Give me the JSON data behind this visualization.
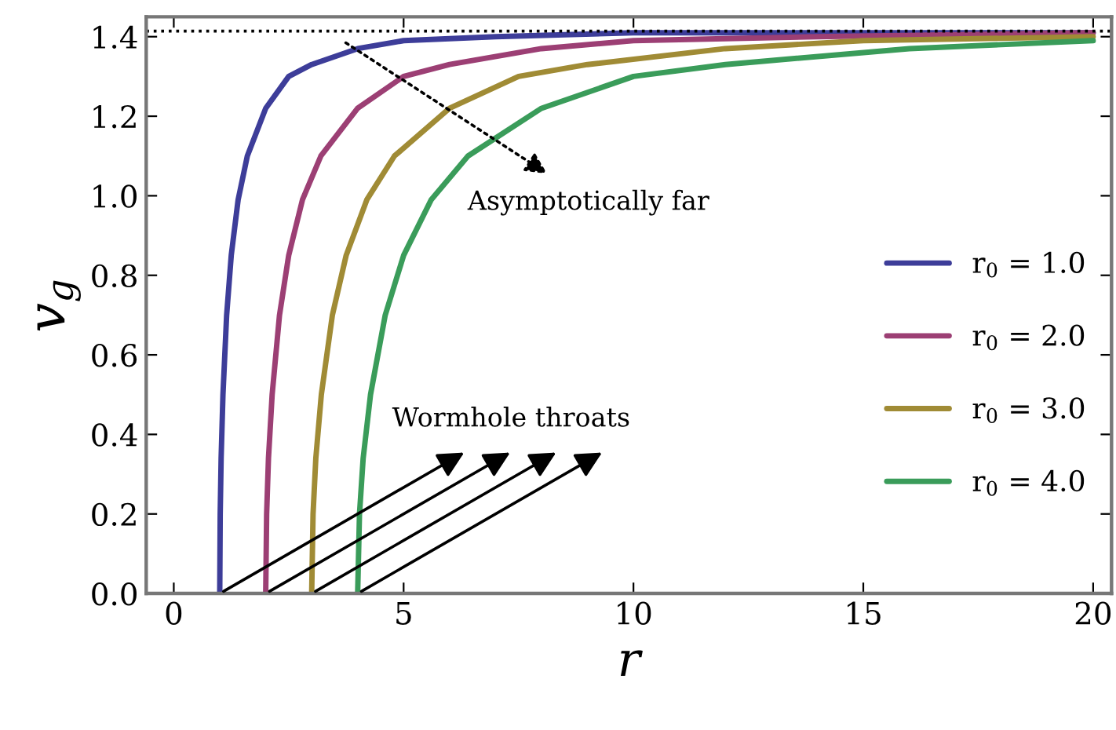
{
  "chart_data": {
    "type": "line",
    "xlabel": "r",
    "ylabel": "v$_{g}$",
    "xlim": [
      -0.6,
      20.4
    ],
    "ylim": [
      0,
      1.45
    ],
    "xticks": [
      0,
      5,
      10,
      15,
      20
    ],
    "yticks": [
      {
        "value": 0,
        "label": "0.0"
      },
      {
        "value": 0.2,
        "label": "0.2"
      },
      {
        "value": 0.4,
        "label": "0.4"
      },
      {
        "value": 0.6,
        "label": "0.6"
      },
      {
        "value": 0.8,
        "label": "0.8"
      },
      {
        "value": 1,
        "label": "1.0"
      },
      {
        "value": 1.2,
        "label": "1.2"
      },
      {
        "value": 1.4,
        "label": "1.4"
      }
    ],
    "legend": "right",
    "grid": false,
    "line_style": "solid",
    "marker": "none",
    "series": [
      {
        "name": "r$_{0}$ = 1.0",
        "color": "#3d3d99",
        "x": [
          1,
          1.01,
          1.03,
          1.07,
          1.15,
          1.25,
          1.4,
          1.6,
          2,
          2.5,
          3,
          4,
          5,
          7,
          10,
          20
        ],
        "values": [
          0,
          0.2,
          0.34,
          0.5,
          0.7,
          0.85,
          0.99,
          1.1,
          1.22,
          1.3,
          1.33,
          1.37,
          1.39,
          1.4,
          1.41,
          1.41
        ]
      },
      {
        "name": "r$_{0}$ = 2.0",
        "color": "#9c3f74",
        "x": [
          2,
          2.02,
          2.06,
          2.14,
          2.3,
          2.5,
          2.8,
          3.2,
          4,
          5,
          6,
          8,
          10,
          14,
          20
        ],
        "values": [
          0,
          0.2,
          0.34,
          0.5,
          0.7,
          0.85,
          0.99,
          1.1,
          1.22,
          1.3,
          1.33,
          1.37,
          1.39,
          1.4,
          1.41
        ]
      },
      {
        "name": "r$_{0}$ = 3.0",
        "color": "#a08b35",
        "x": [
          3,
          3.03,
          3.09,
          3.21,
          3.45,
          3.75,
          4.2,
          4.8,
          6,
          7.5,
          9,
          12,
          15,
          20
        ],
        "values": [
          0,
          0.2,
          0.34,
          0.5,
          0.7,
          0.85,
          0.99,
          1.1,
          1.22,
          1.3,
          1.33,
          1.37,
          1.39,
          1.4
        ]
      },
      {
        "name": "r$_{0}$ = 4.0",
        "color": "#3a9c5a",
        "x": [
          4,
          4.04,
          4.12,
          4.28,
          4.6,
          5,
          5.6,
          6.4,
          8,
          10,
          12,
          16,
          20
        ],
        "values": [
          0,
          0.2,
          0.34,
          0.5,
          0.7,
          0.85,
          0.99,
          1.1,
          1.22,
          1.3,
          1.33,
          1.37,
          1.39
        ]
      }
    ],
    "ref_lines": [
      {
        "axis": "y",
        "value": 1.414,
        "color": "#000000",
        "line_style": "dotted"
      }
    ],
    "annotations": [
      "Asymptotically far",
      "Wormhole throats"
    ]
  }
}
